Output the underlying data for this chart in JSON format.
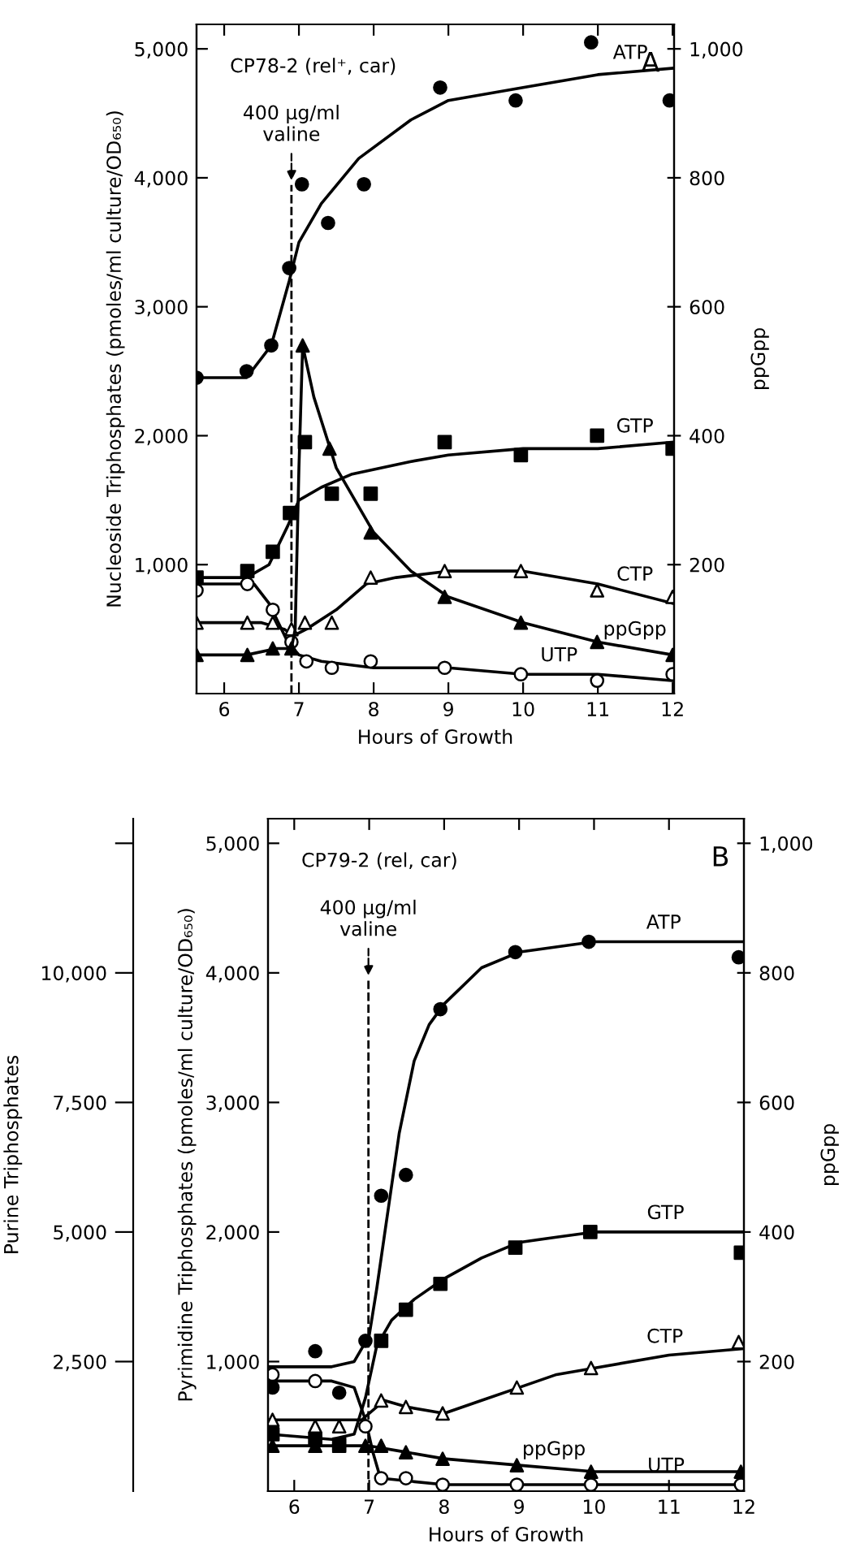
{
  "chart_data": [
    {
      "type": "scatter",
      "xlabel": "Hours of Growth",
      "ylabel": "Nucleoside Triphosphates (pmoles/ml culture/OD₆₅₀)",
      "y2label": "ppGpp",
      "annotations": [
        "CP78-2 (rel⁺, car)",
        "A"
      ],
      "xlim": [
        5.63,
        12.02
      ],
      "xticks": [
        6,
        7,
        8,
        9,
        10,
        11,
        12
      ],
      "ylim": [
        0,
        5190
      ],
      "yticks": [
        {
          "value": 1000,
          "label": "1,000"
        },
        {
          "value": 2000,
          "label": "2,000"
        },
        {
          "value": 3000,
          "label": "3,000"
        },
        {
          "value": 4000,
          "label": "4,000"
        },
        {
          "value": 5000,
          "label": "5,000"
        }
      ],
      "y2lim": [
        0,
        1038
      ],
      "y2ticks": [
        200,
        400,
        600,
        800,
        {
          "value": 1000,
          "label": "1,000"
        }
      ],
      "ref_lines": [
        {
          "axis": "x",
          "value": 6.9,
          "label": "400 μg/ml\nvaline",
          "line_style": "dashed",
          "color": "#000000"
        }
      ],
      "grid": false,
      "series": [
        {
          "type": "scatter",
          "name": "ATP",
          "marker": "circle",
          "color": "#000000",
          "x": [
            5.63,
            6.3,
            6.63,
            6.87,
            7.04,
            7.39,
            7.87,
            8.89,
            9.9,
            10.91,
            11.96
          ],
          "values": [
            2450,
            2500,
            2700,
            3300,
            3950,
            3650,
            3950,
            4700,
            4600,
            5050,
            4600
          ]
        },
        {
          "type": "line",
          "color": "#000000",
          "x": [
            5.63,
            6.3,
            6.63,
            6.87,
            7.0,
            7.3,
            7.8,
            8.5,
            9,
            10,
            11,
            12
          ],
          "values": [
            2450,
            2450,
            2700,
            3200,
            3500,
            3800,
            4150,
            4450,
            4600,
            4700,
            4800,
            4850
          ]
        },
        {
          "type": "scatter",
          "name": "GTP",
          "marker": "square",
          "color": "#000000",
          "x": [
            5.63,
            6.31,
            6.65,
            6.88,
            7.08,
            7.44,
            7.96,
            8.95,
            9.97,
            10.99,
            12.0
          ],
          "values": [
            900,
            950,
            1100,
            1400,
            1950,
            1550,
            1550,
            1950,
            1850,
            2000,
            1900
          ]
        },
        {
          "type": "line",
          "color": "#000000",
          "x": [
            5.63,
            6.3,
            6.6,
            6.85,
            7.0,
            7.3,
            7.7,
            8.5,
            9,
            10,
            11,
            12
          ],
          "values": [
            900,
            900,
            1000,
            1300,
            1500,
            1600,
            1700,
            1800,
            1850,
            1900,
            1900,
            1950
          ]
        },
        {
          "type": "scatter",
          "name": "ppGpp",
          "axis": "y2",
          "marker": "triangle",
          "color": "#000000",
          "x": [
            5.63,
            6.31,
            6.65,
            6.9,
            7.05,
            7.41,
            7.96,
            8.95,
            9.97,
            10.99,
            12.0
          ],
          "values": [
            60,
            60,
            70,
            70,
            540,
            380,
            250,
            150,
            110,
            80,
            60
          ]
        },
        {
          "type": "line",
          "axis": "y2",
          "color": "#000000",
          "x": [
            5.63,
            6.3,
            6.7,
            6.9,
            6.95,
            7.0,
            7.05,
            7.2,
            7.5,
            8,
            8.5,
            9,
            10,
            11,
            12
          ],
          "values": [
            60,
            60,
            70,
            70,
            100,
            350,
            540,
            460,
            350,
            250,
            190,
            150,
            110,
            80,
            60
          ]
        },
        {
          "type": "scatter",
          "name": "CTP",
          "marker": "triangle",
          "color": "#ffffff",
          "x": [
            5.63,
            6.31,
            6.65,
            6.9,
            7.08,
            7.44,
            7.96,
            8.95,
            9.97,
            10.99,
            12.0
          ],
          "values": [
            550,
            550,
            550,
            500,
            550,
            550,
            900,
            950,
            950,
            800,
            750
          ]
        },
        {
          "type": "line",
          "color": "#000000",
          "x": [
            5.63,
            6.5,
            6.8,
            6.93,
            7.1,
            7.5,
            7.9,
            8.3,
            9,
            10,
            11,
            12
          ],
          "values": [
            550,
            550,
            500,
            450,
            500,
            650,
            850,
            900,
            950,
            950,
            850,
            700
          ]
        },
        {
          "type": "scatter",
          "name": "UTP",
          "marker": "circle",
          "color": "#ffffff",
          "x": [
            5.63,
            6.31,
            6.65,
            6.9,
            7.1,
            7.44,
            7.96,
            8.95,
            9.97,
            10.99,
            12.0
          ],
          "values": [
            800,
            850,
            650,
            400,
            250,
            200,
            250,
            200,
            150,
            100,
            150
          ]
        },
        {
          "type": "line",
          "color": "#000000",
          "x": [
            5.63,
            6.4,
            6.6,
            6.85,
            7.0,
            7.3,
            8,
            9,
            10,
            11,
            12
          ],
          "values": [
            850,
            850,
            700,
            400,
            300,
            250,
            200,
            200,
            150,
            150,
            100
          ]
        }
      ]
    },
    {
      "type": "scatter",
      "xlabel": "Hours of Growth",
      "ylabel": "Pyrimidine Triphosphates (pmoles/ml culture/OD₆₅₀)",
      "y2label": "ppGpp",
      "y3label": "Purine Triphosphates",
      "annotations": [
        "CP79-2 (rel, car)",
        "B"
      ],
      "xlim": [
        5.65,
        12.0
      ],
      "xticks": [
        6,
        7,
        8,
        9,
        10,
        11,
        12
      ],
      "ylim": [
        0,
        5190
      ],
      "yticks": [
        {
          "value": 1000,
          "label": "1,000"
        },
        {
          "value": 2000,
          "label": "2,000"
        },
        {
          "value": 3000,
          "label": "3,000"
        },
        {
          "value": 4000,
          "label": "4,000"
        },
        {
          "value": 5000,
          "label": "5,000"
        }
      ],
      "y2lim": [
        0,
        1038
      ],
      "y2ticks": [
        200,
        400,
        600,
        800,
        {
          "value": 1000,
          "label": "1,000"
        }
      ],
      "y3lim": [
        0,
        12975
      ],
      "y3ticks": [
        {
          "value": 2500,
          "label": "2,500"
        },
        {
          "value": 5000,
          "label": "5,000"
        },
        {
          "value": 7500,
          "label": "7,500"
        },
        {
          "value": 10000,
          "label": "10,000"
        },
        {
          "value": 12500,
          "label": null
        }
      ],
      "ref_lines": [
        {
          "axis": "x",
          "value": 6.99,
          "label": "400 μg/ml\nvaline",
          "line_style": "dashed",
          "color": "#000000"
        }
      ],
      "grid": false,
      "series": [
        {
          "type": "scatter",
          "name": "ATP",
          "axis": "y3",
          "marker": "circle",
          "color": "#000000",
          "x": [
            5.71,
            6.28,
            6.6,
            6.95,
            7.16,
            7.49,
            7.95,
            8.95,
            9.93,
            11.93
          ],
          "values": [
            2000,
            2700,
            1900,
            2900,
            5700,
            6100,
            9300,
            10400,
            10600,
            10300
          ]
        },
        {
          "type": "line",
          "axis": "y3",
          "color": "#000000",
          "x": [
            5.65,
            6.5,
            6.8,
            7.0,
            7.1,
            7.2,
            7.4,
            7.6,
            7.8,
            8.0,
            8.5,
            9,
            10,
            12
          ],
          "values": [
            2400,
            2400,
            2500,
            3000,
            3900,
            4900,
            6900,
            8300,
            9000,
            9400,
            10100,
            10400,
            10600,
            10600
          ]
        },
        {
          "type": "scatter",
          "name": "GTP",
          "axis": "y3",
          "marker": "square",
          "color": "#000000",
          "x": [
            5.71,
            6.28,
            6.6,
            7.16,
            7.49,
            7.95,
            8.95,
            9.95,
            11.96
          ],
          "values": [
            1100,
            1000,
            900,
            2900,
            3500,
            4000,
            4700,
            5000,
            4600
          ]
        },
        {
          "type": "line",
          "axis": "y3",
          "color": "#000000",
          "x": [
            5.65,
            6.5,
            6.8,
            6.95,
            7.1,
            7.3,
            7.6,
            8,
            8.5,
            9,
            9.5,
            10,
            12
          ],
          "values": [
            1100,
            1000,
            1100,
            1800,
            2800,
            3300,
            3700,
            4100,
            4500,
            4800,
            4900,
            5000,
            5000
          ]
        },
        {
          "type": "scatter",
          "name": "CTP",
          "marker": "triangle",
          "color": "#ffffff",
          "x": [
            5.71,
            6.28,
            6.6,
            7.16,
            7.49,
            7.98,
            8.97,
            9.96,
            11.93
          ],
          "values": [
            550,
            500,
            500,
            700,
            650,
            600,
            800,
            950,
            1150
          ]
        },
        {
          "type": "line",
          "color": "#000000",
          "x": [
            5.65,
            6.6,
            6.9,
            7.2,
            7.5,
            8,
            8.5,
            9,
            9.5,
            10,
            11,
            12
          ],
          "values": [
            550,
            550,
            550,
            700,
            650,
            600,
            700,
            800,
            900,
            950,
            1050,
            1100
          ]
        },
        {
          "type": "scatter",
          "name": "UTP",
          "marker": "circle",
          "color": "#ffffff",
          "x": [
            5.71,
            6.28,
            6.95,
            7.16,
            7.49,
            7.98,
            8.97,
            9.96,
            11.96
          ],
          "values": [
            900,
            850,
            500,
            100,
            100,
            50,
            50,
            50,
            50
          ]
        },
        {
          "type": "line",
          "color": "#000000",
          "x": [
            5.65,
            6.5,
            6.8,
            6.95,
            7.05,
            7.15,
            8,
            9,
            10,
            12
          ],
          "values": [
            850,
            850,
            800,
            550,
            300,
            100,
            50,
            50,
            50,
            50
          ]
        },
        {
          "type": "scatter",
          "name": "ppGpp",
          "axis": "y2",
          "marker": "triangle",
          "color": "#000000",
          "x": [
            5.71,
            6.28,
            6.6,
            6.95,
            7.16,
            7.49,
            7.98,
            8.97,
            9.96,
            11.96
          ],
          "values": [
            70,
            70,
            70,
            70,
            70,
            60,
            50,
            40,
            30,
            30
          ]
        },
        {
          "type": "line",
          "axis": "y2",
          "color": "#000000",
          "x": [
            5.65,
            7,
            7.5,
            8,
            9,
            10,
            11,
            12
          ],
          "values": [
            70,
            70,
            60,
            50,
            40,
            30,
            30,
            30
          ]
        }
      ]
    }
  ]
}
